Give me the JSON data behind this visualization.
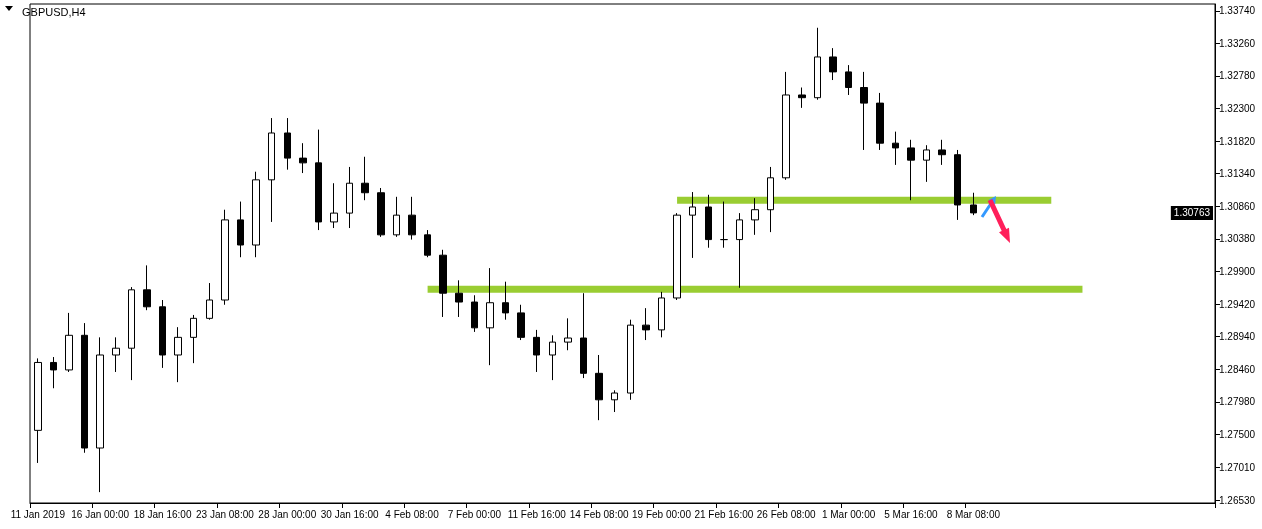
{
  "chart_data": {
    "type": "candlestick",
    "title": "GBPUSD,H4",
    "categories": [
      "11 Jan 2019",
      null,
      null,
      null,
      "16 Jan 00:00",
      null,
      null,
      null,
      "18 Jan 16:00",
      null,
      null,
      null,
      "23 Jan 08:00",
      null,
      null,
      null,
      "28 Jan 00:00",
      null,
      null,
      null,
      "30 Jan 16:00",
      null,
      null,
      null,
      "4 Feb 08:00",
      null,
      null,
      null,
      "7 Feb 00:00",
      null,
      null,
      null,
      "11 Feb 16:00",
      null,
      null,
      null,
      "14 Feb 08:00",
      null,
      null,
      null,
      "19 Feb 00:00",
      null,
      null,
      null,
      "21 Feb 16:00",
      null,
      null,
      null,
      "26 Feb 08:00",
      null,
      null,
      null,
      "1 Mar 00:00",
      null,
      null,
      null,
      "5 Mar 16:00",
      null,
      null,
      null,
      "8 Mar 08:00",
      null,
      null,
      null,
      null,
      null,
      null,
      null,
      null,
      null,
      null,
      null,
      null,
      null,
      null,
      null
    ],
    "ohlc": [
      [
        1.2756,
        1.2862,
        1.2708,
        1.2856
      ],
      [
        1.2856,
        1.2864,
        1.2818,
        1.2845
      ],
      [
        1.2845,
        1.2929,
        1.2842,
        1.2896
      ],
      [
        1.2896,
        1.2914,
        1.2723,
        1.273
      ],
      [
        1.273,
        1.2893,
        1.2665,
        1.2867
      ],
      [
        1.2867,
        1.2893,
        1.2842,
        1.2877
      ],
      [
        1.2877,
        1.2967,
        1.283,
        1.2963
      ],
      [
        1.2963,
        1.2999,
        1.2933,
        1.2938
      ],
      [
        1.2938,
        1.2948,
        1.2848,
        1.2867
      ],
      [
        1.2867,
        1.2908,
        1.2827,
        1.2893
      ],
      [
        1.2893,
        1.2926,
        1.2855,
        1.2921
      ],
      [
        1.2921,
        1.2973,
        1.2919,
        1.2948
      ],
      [
        1.2948,
        1.3081,
        1.2941,
        1.3066
      ],
      [
        1.3066,
        1.3093,
        1.3011,
        1.3029
      ],
      [
        1.3029,
        1.3137,
        1.3011,
        1.3125
      ],
      [
        1.3125,
        1.3216,
        1.3063,
        1.3194
      ],
      [
        1.3194,
        1.3216,
        1.314,
        1.3157
      ],
      [
        1.3157,
        1.3179,
        1.3135,
        1.315
      ],
      [
        1.315,
        1.3199,
        1.3051,
        1.3063
      ],
      [
        1.3063,
        1.312,
        1.3054,
        1.3076
      ],
      [
        1.3076,
        1.3144,
        1.3054,
        1.312
      ],
      [
        1.312,
        1.3159,
        1.3095,
        1.3106
      ],
      [
        1.3106,
        1.3113,
        1.3041,
        1.3044
      ],
      [
        1.3044,
        1.31,
        1.3041,
        1.3073
      ],
      [
        1.3073,
        1.31,
        1.3037,
        1.3044
      ],
      [
        1.3044,
        1.3051,
        1.3011,
        1.3014
      ],
      [
        1.3014,
        1.3022,
        1.2923,
        1.2958
      ],
      [
        1.2958,
        1.2977,
        1.2923,
        1.2945
      ],
      [
        1.2945,
        1.2955,
        1.2901,
        1.2907
      ],
      [
        1.2907,
        1.2995,
        1.2852,
        1.2944
      ],
      [
        1.2944,
        1.2975,
        1.2919,
        1.2929
      ],
      [
        1.2929,
        1.2941,
        1.2889,
        1.2893
      ],
      [
        1.2893,
        1.2904,
        1.2842,
        1.2867
      ],
      [
        1.2867,
        1.2896,
        1.283,
        1.2886
      ],
      [
        1.2886,
        1.2921,
        1.2874,
        1.2892
      ],
      [
        1.2892,
        1.2958,
        1.2833,
        1.284
      ],
      [
        1.284,
        1.2867,
        1.2771,
        1.2801
      ],
      [
        1.2801,
        1.2815,
        1.2783,
        1.2811
      ],
      [
        1.2811,
        1.2919,
        1.2801,
        1.2911
      ],
      [
        1.2911,
        1.2936,
        1.2889,
        1.2904
      ],
      [
        1.2904,
        1.296,
        1.2893,
        1.2951
      ],
      [
        1.2951,
        1.3076,
        1.2948,
        1.3073
      ],
      [
        1.3073,
        1.3107,
        1.301,
        1.3085
      ],
      [
        1.3085,
        1.3103,
        1.3025,
        1.3037
      ],
      [
        1.3037,
        1.3093,
        1.3025,
        1.3037
      ],
      [
        1.3037,
        1.3076,
        1.2966,
        1.3066
      ],
      [
        1.3066,
        1.3098,
        1.3044,
        1.3081
      ],
      [
        1.3081,
        1.3144,
        1.3048,
        1.3128
      ],
      [
        1.3128,
        1.3284,
        1.3125,
        1.325
      ],
      [
        1.325,
        1.3261,
        1.3231,
        1.3246
      ],
      [
        1.3246,
        1.3349,
        1.3243,
        1.3306
      ],
      [
        1.3306,
        1.3319,
        1.3272,
        1.3284
      ],
      [
        1.3284,
        1.3294,
        1.325,
        1.3261
      ],
      [
        1.3261,
        1.3284,
        1.3169,
        1.3238
      ],
      [
        1.3238,
        1.3253,
        1.3169,
        1.3179
      ],
      [
        1.3179,
        1.3196,
        1.3147,
        1.3172
      ],
      [
        1.3172,
        1.3184,
        1.3095,
        1.3154
      ],
      [
        1.3154,
        1.3176,
        1.3122,
        1.3169
      ],
      [
        1.3169,
        1.3184,
        1.3147,
        1.3162
      ],
      [
        1.3162,
        1.3169,
        1.3066,
        1.3088
      ],
      [
        1.3088,
        1.3106,
        1.3073,
        1.30763
      ],
      null,
      null,
      null,
      null,
      null,
      null,
      null,
      null,
      null,
      null,
      null,
      null,
      null,
      null,
      null
    ],
    "series": [
      {
        "type": "line",
        "color": "#9acd32",
        "values": [
          null,
          null,
          null,
          null,
          null,
          null,
          null,
          null,
          null,
          null,
          null,
          null,
          null,
          null,
          null,
          null,
          null,
          null,
          null,
          null,
          null,
          null,
          null,
          null,
          null,
          null,
          null,
          null,
          null,
          null,
          null,
          null,
          null,
          null,
          null,
          null,
          null,
          null,
          null,
          null,
          null,
          1.3095,
          1.3095,
          1.3095,
          1.3095,
          1.3095,
          1.3095,
          1.3095,
          1.3095,
          1.3095,
          1.3095,
          1.3095,
          1.3095,
          1.3095,
          1.3095,
          1.3095,
          1.3095,
          1.3095,
          1.3095,
          1.3095,
          1.3095,
          1.3095,
          1.3095,
          1.3095,
          1.3095,
          1.3095,
          null,
          null,
          null,
          null,
          null,
          null,
          null,
          null,
          null,
          null
        ]
      },
      {
        "type": "line",
        "color": "#9acd32",
        "values": [
          null,
          null,
          null,
          null,
          null,
          null,
          null,
          null,
          null,
          null,
          null,
          null,
          null,
          null,
          null,
          null,
          null,
          null,
          null,
          null,
          null,
          null,
          null,
          null,
          null,
          1.2964,
          1.2964,
          1.2964,
          1.2964,
          1.2964,
          1.2964,
          1.2964,
          1.2964,
          1.2964,
          1.2964,
          1.2964,
          1.2964,
          1.2964,
          1.2964,
          1.2964,
          1.2964,
          1.2964,
          1.2964,
          1.2964,
          1.2964,
          1.2964,
          1.2964,
          1.2964,
          1.2964,
          1.2964,
          1.2964,
          1.2964,
          1.2964,
          1.2964,
          1.2964,
          1.2964,
          1.2964,
          1.2964,
          1.2964,
          1.2964,
          1.2964,
          1.2964,
          1.2964,
          1.2964,
          1.2964,
          1.2964,
          1.2964,
          1.2964,
          null,
          null,
          null,
          null,
          null,
          null,
          null,
          null
        ]
      }
    ],
    "ylim": [
      1.2649,
      1.3384
    ],
    "yticks": [
      {
        "value": 1.2653,
        "label": "1.26530"
      },
      {
        "value": 1.2701,
        "label": "1.27010"
      },
      {
        "value": 1.275,
        "label": "1.27500"
      },
      {
        "value": 1.2798,
        "label": "1.27980"
      },
      {
        "value": 1.2846,
        "label": "1.28460"
      },
      {
        "value": 1.2894,
        "label": "1.28940"
      },
      {
        "value": 1.2942,
        "label": "1.29420"
      },
      {
        "value": 1.299,
        "label": "1.29900"
      },
      {
        "value": 1.3038,
        "label": "1.30380"
      },
      {
        "value": 1.3086,
        "label": "1.30860"
      },
      {
        "value": 1.3134,
        "label": "1.31340"
      },
      {
        "value": 1.3182,
        "label": "1.31820"
      },
      {
        "value": 1.323,
        "label": "1.32300"
      },
      {
        "value": 1.3278,
        "label": "1.32780"
      },
      {
        "value": 1.3326,
        "label": "1.33260"
      },
      {
        "value": 1.3374,
        "label": "1.33740"
      }
    ],
    "annotations": [
      {
        "text": "1.30763",
        "y": 1.30763
      }
    ]
  }
}
